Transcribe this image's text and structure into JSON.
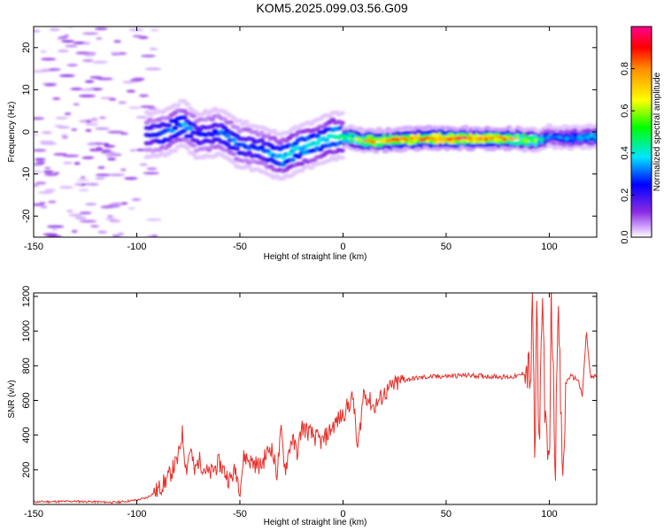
{
  "figure_title": "KOM5.2025.099.03.56.G09",
  "colors": {
    "snr_line": "#e8302a",
    "axis": "#000000",
    "background": "#ffffff"
  },
  "chart_data": [
    {
      "type": "heatmap",
      "title": "KOM5.2025.099.03.56.G09",
      "xlabel": "Height of straight line (km)",
      "ylabel": "Frequency (Hz)",
      "xlim": [
        -150,
        123
      ],
      "ylim": [
        -25,
        25
      ],
      "xticks": [
        -150,
        -100,
        -50,
        0,
        50,
        100
      ],
      "yticks": [
        -20,
        -10,
        0,
        10,
        20
      ],
      "colorbar": {
        "label": "Normalized spectral amplitude",
        "ticks": [
          "0.0",
          "0.2",
          "0.4",
          "0.6",
          "0.8"
        ],
        "range": [
          0,
          1
        ],
        "colormap": "rainbow (purple-blue-cyan-green-yellow-red-magenta)"
      },
      "ridge": {
        "description": "dominant spectral ridge (frequency of peak amplitude)",
        "x": [
          -95,
          -85,
          -78,
          -70,
          -60,
          -50,
          -40,
          -30,
          -22,
          -15,
          -5,
          0,
          10,
          20,
          40,
          60,
          80,
          95,
          100,
          110,
          123
        ],
        "y": [
          -1,
          0,
          2,
          -1,
          0,
          -3,
          -4,
          -6,
          -4,
          -3,
          -1,
          -1,
          -2,
          -2,
          -1.5,
          -1.5,
          -1.5,
          -2,
          -1,
          -1.5,
          -1
        ],
        "amplitude": [
          0.25,
          0.3,
          0.35,
          0.25,
          0.3,
          0.3,
          0.28,
          0.4,
          0.45,
          0.4,
          0.4,
          0.45,
          0.75,
          0.8,
          0.85,
          0.9,
          0.8,
          0.55,
          0.35,
          0.35,
          0.45
        ]
      }
    },
    {
      "type": "line",
      "xlabel": "Height of straight line (km)",
      "ylabel": "SNR (v/v)",
      "xlim": [
        -150,
        123
      ],
      "ylim": [
        0,
        1220
      ],
      "xticks": [
        -150,
        -100,
        -50,
        0,
        50,
        100
      ],
      "yticks": [
        200,
        400,
        600,
        800,
        1000,
        1200
      ],
      "series": [
        {
          "x": [
            -150,
            -130,
            -110,
            -100,
            -95,
            -90,
            -85,
            -80,
            -78,
            -76,
            -74,
            -72,
            -70,
            -65,
            -60,
            -55,
            -52,
            -50,
            -48,
            -45,
            -40,
            -35,
            -32,
            -30,
            -28,
            -25,
            -22,
            -20,
            -15,
            -10,
            -5,
            0,
            5,
            7,
            10,
            15,
            20,
            25,
            30,
            40,
            50,
            60,
            70,
            80,
            85,
            88,
            90,
            91,
            92,
            93,
            94,
            95,
            96,
            97,
            98,
            99,
            100,
            101,
            102,
            103,
            104,
            105,
            106,
            107,
            108,
            110,
            112,
            114,
            116,
            118,
            120,
            123
          ],
          "y": [
            15,
            18,
            12,
            25,
            40,
            80,
            150,
            260,
            420,
            200,
            330,
            180,
            260,
            170,
            240,
            140,
            200,
            90,
            280,
            250,
            220,
            340,
            180,
            420,
            200,
            380,
            300,
            450,
            400,
            360,
            450,
            520,
            620,
            300,
            650,
            560,
            640,
            690,
            720,
            735,
            740,
            745,
            740,
            735,
            740,
            760,
            780,
            700,
            1200,
            180,
            1180,
            300,
            900,
            1200,
            450,
            300,
            220,
            1210,
            700,
            180,
            1200,
            850,
            320,
            150,
            700,
            740,
            730,
            720,
            620,
            1000,
            730,
            740
          ]
        }
      ]
    }
  ]
}
